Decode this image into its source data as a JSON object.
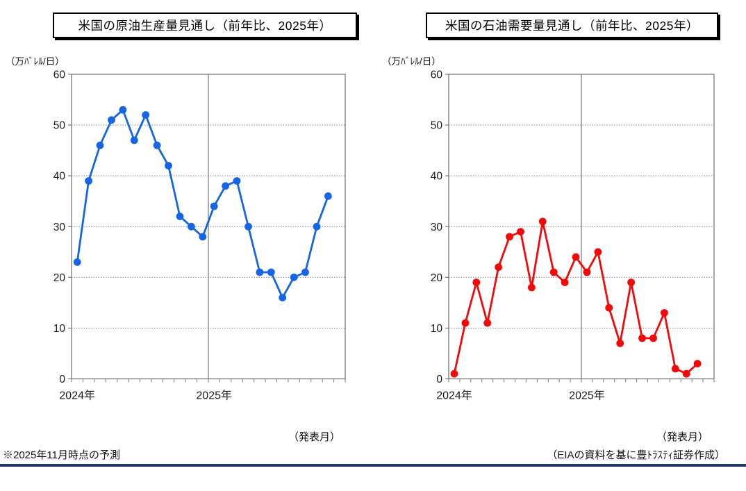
{
  "charts_meta": {
    "left_title": "米国の原油生産量見通し（前年比、2025年）",
    "right_title": "米国の石油需要量見通し（前年比、2025年）"
  },
  "footer": {
    "footnote": "※2025年11月時点の予測",
    "credit": "（EIAの資料を基に豊ﾄﾗｽﾃｨ証券作成）",
    "rule_color": "#1f3864"
  },
  "chart_data": [
    {
      "type": "line",
      "title": "米国の原油生産量見通し（前年比、2025年）",
      "ylabel": "（万ﾊﾞﾚﾙ/日）",
      "xlabel": "（発表月）",
      "values": [
        23,
        39,
        46,
        51,
        53,
        47,
        52,
        46,
        42,
        32,
        30,
        28,
        34,
        38,
        39,
        30,
        21,
        21,
        16,
        20,
        21,
        30,
        36
      ],
      "ylim": [
        0,
        60
      ],
      "yticks": [
        0,
        10,
        20,
        30,
        40,
        50,
        60
      ],
      "x_year_labels": [
        {
          "label": "2024年",
          "point_index": 0
        },
        {
          "label": "2025年",
          "point_index": 12
        }
      ],
      "year_separator_after_index": 11,
      "total_slots": 24,
      "color": "#1565e5",
      "grid": "horizontal-dotted",
      "legend": "none",
      "marker": "circle"
    },
    {
      "type": "line",
      "title": "米国の石油需要量見通し（前年比、2025年）",
      "ylabel": "（万ﾊﾞﾚﾙ/日）",
      "xlabel": "（発表月）",
      "values": [
        1,
        11,
        19,
        11,
        22,
        28,
        29,
        18,
        31,
        21,
        19,
        24,
        21,
        25,
        14,
        7,
        19,
        8,
        8,
        13,
        2,
        1,
        3
      ],
      "ylim": [
        0,
        60
      ],
      "yticks": [
        0,
        10,
        20,
        30,
        40,
        50,
        60
      ],
      "x_year_labels": [
        {
          "label": "2024年",
          "point_index": 0
        },
        {
          "label": "2025年",
          "point_index": 12
        }
      ],
      "year_separator_after_index": 11,
      "total_slots": 24,
      "color": "#f50808",
      "grid": "horizontal-dotted",
      "legend": "none",
      "marker": "circle"
    }
  ]
}
